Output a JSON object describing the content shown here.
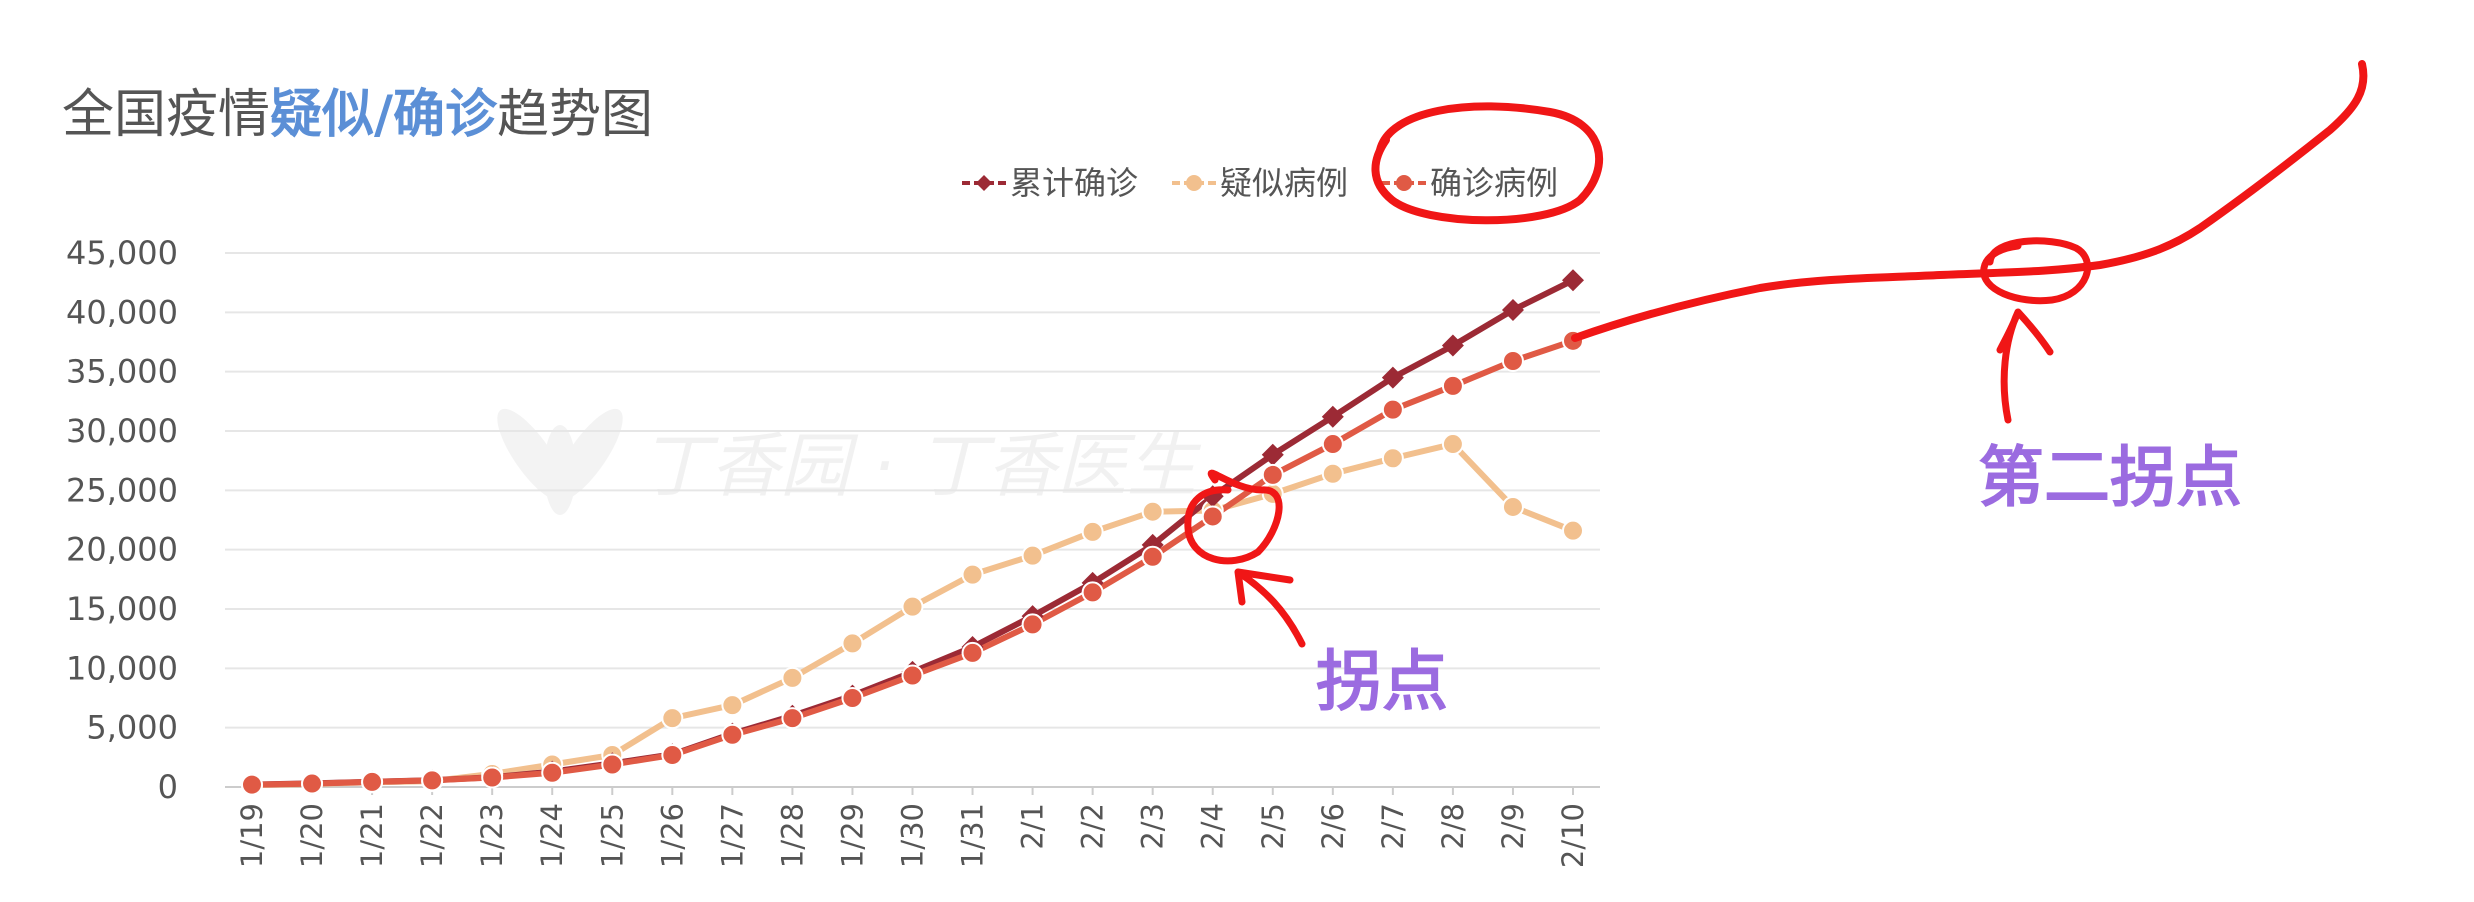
{
  "chart_data": {
    "type": "line",
    "title_parts": [
      "全国疫情",
      "疑似/确诊",
      "趋势图"
    ],
    "watermark": "丁香园 · 丁香医生",
    "categories": [
      "1/19",
      "1/20",
      "1/21",
      "1/22",
      "1/23",
      "1/24",
      "1/25",
      "1/26",
      "1/27",
      "1/28",
      "1/29",
      "1/30",
      "1/31",
      "2/1",
      "2/2",
      "2/3",
      "2/4",
      "2/5",
      "2/6",
      "2/7",
      "2/8",
      "2/9",
      "2/10"
    ],
    "ylim": [
      0,
      45000
    ],
    "yticks": [
      0,
      5000,
      10000,
      15000,
      20000,
      25000,
      30000,
      35000,
      40000,
      45000
    ],
    "ytick_labels": [
      "0",
      "5,000",
      "10,000",
      "15,000",
      "20,000",
      "25,000",
      "30,000",
      "35,000",
      "40,000",
      "45,000"
    ],
    "grid": true,
    "legend_position": "top-right",
    "series": [
      {
        "name": "累计确诊",
        "color": "#9c2a35",
        "marker": "diamond",
        "values": [
          200,
          300,
          440,
          570,
          830,
          1300,
          2000,
          2750,
          4500,
          6000,
          7700,
          9700,
          11800,
          14400,
          17200,
          20400,
          24500,
          28000,
          31200,
          34500,
          37200,
          40200,
          42700
        ]
      },
      {
        "name": "疑似病例",
        "color": "#f2c08e",
        "marker": "circle",
        "values": [
          150,
          250,
          400,
          500,
          1100,
          1900,
          2700,
          5800,
          6900,
          9200,
          12100,
          15200,
          17900,
          19500,
          21500,
          23200,
          23300,
          24700,
          26400,
          27700,
          28900,
          23600,
          21600
        ]
      },
      {
        "name": "确诊病例",
        "color": "#e05a45",
        "marker": "circle",
        "values": [
          200,
          290,
          430,
          560,
          800,
          1200,
          1900,
          2700,
          4400,
          5800,
          7500,
          9400,
          11300,
          13700,
          16400,
          19400,
          22800,
          26300,
          28900,
          31800,
          33800,
          35900,
          37600
        ]
      }
    ],
    "annotations": [
      {
        "text": "拐点",
        "color": "#9b6be0"
      },
      {
        "text": "第二拐点",
        "color": "#9b6be0"
      }
    ],
    "handdrawn_color": "#f01616"
  }
}
